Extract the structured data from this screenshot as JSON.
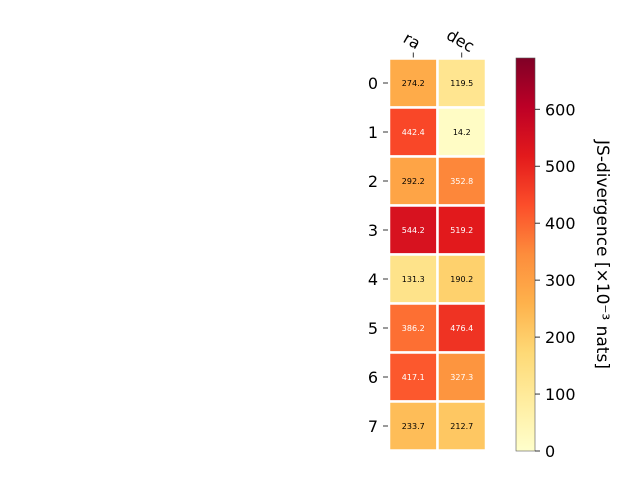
{
  "chart_data": {
    "type": "heatmap",
    "columns": [
      "ra",
      "dec"
    ],
    "rows": [
      "0",
      "1",
      "2",
      "3",
      "4",
      "5",
      "6",
      "7"
    ],
    "values": [
      [
        274.2,
        119.5
      ],
      [
        442.4,
        14.2
      ],
      [
        292.2,
        352.8
      ],
      [
        544.2,
        519.2
      ],
      [
        131.3,
        190.2
      ],
      [
        386.2,
        476.4
      ],
      [
        417.1,
        327.3
      ],
      [
        233.7,
        212.7
      ]
    ],
    "cell_labels": [
      [
        "274.2",
        "119.5"
      ],
      [
        "442.4",
        "14.2"
      ],
      [
        "292.2",
        "352.8"
      ],
      [
        "544.2",
        "519.2"
      ],
      [
        "131.3",
        "190.2"
      ],
      [
        "386.2",
        "476.4"
      ],
      [
        "417.1",
        "327.3"
      ],
      [
        "233.7",
        "212.7"
      ]
    ],
    "colorbar": {
      "label": "JS-divergence [×10⁻³ nats]",
      "range": [
        0,
        690
      ],
      "ticks": [
        0,
        100,
        200,
        300,
        400,
        500,
        600
      ],
      "colormap": "YlOrRd"
    },
    "grid": false
  }
}
